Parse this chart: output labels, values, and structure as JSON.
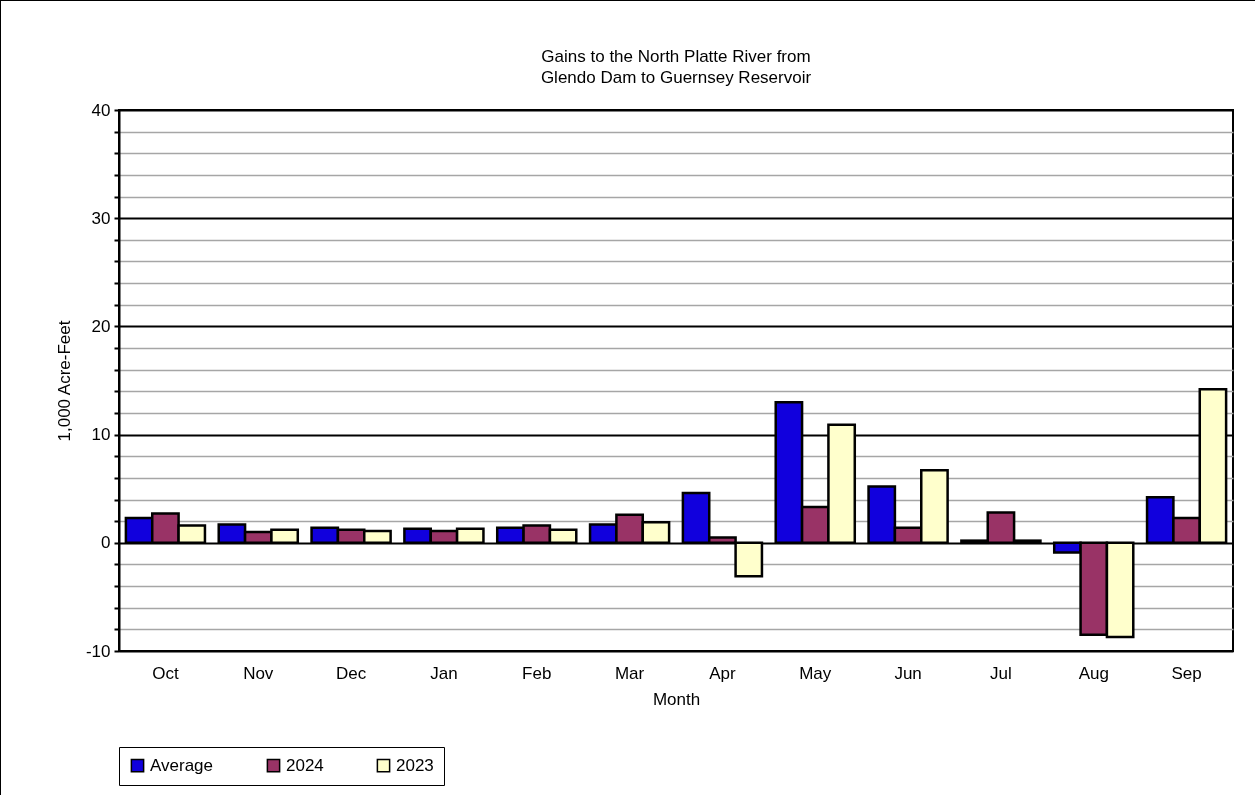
{
  "chart_data": {
    "type": "bar",
    "title": "Gains to the North Platte River from\nGlendo Dam to Guernsey Reservoir",
    "xlabel": "Month",
    "ylabel": "1,000 Acre-Feet",
    "categories": [
      "Oct",
      "Nov",
      "Dec",
      "Jan",
      "Feb",
      "Mar",
      "Apr",
      "May",
      "Jun",
      "Jul",
      "Aug",
      "Sep"
    ],
    "series": [
      {
        "name": "Average",
        "color": "#1100dd",
        "values": [
          2.3,
          1.7,
          1.4,
          1.3,
          1.4,
          1.7,
          4.6,
          13.0,
          5.2,
          0.2,
          -0.9,
          4.2
        ]
      },
      {
        "name": "2024",
        "color": "#993366",
        "values": [
          2.7,
          1.0,
          1.2,
          1.1,
          1.6,
          2.6,
          0.5,
          3.3,
          1.4,
          2.8,
          -8.5,
          2.3
        ]
      },
      {
        "name": "2023",
        "color": "#ffffcc",
        "values": [
          1.6,
          1.2,
          1.1,
          1.3,
          1.2,
          1.9,
          -3.1,
          10.9,
          6.7,
          0.2,
          -8.7,
          14.2
        ]
      }
    ],
    "ylim": [
      -10,
      40
    ],
    "yticks": [
      -10,
      {
        "value": -8,
        "label": null
      },
      {
        "value": -6,
        "label": null
      },
      {
        "value": -4,
        "label": null
      },
      {
        "value": -2,
        "label": null
      },
      0,
      {
        "value": 2,
        "label": null
      },
      {
        "value": 4,
        "label": null
      },
      {
        "value": 6,
        "label": null
      },
      {
        "value": 8,
        "label": null
      },
      10,
      {
        "value": 12,
        "label": null
      },
      {
        "value": 14,
        "label": null
      },
      {
        "value": 16,
        "label": null
      },
      {
        "value": 18,
        "label": null
      },
      20,
      {
        "value": 22,
        "label": null
      },
      {
        "value": 24,
        "label": null
      },
      {
        "value": 26,
        "label": null
      },
      {
        "value": 28,
        "label": null
      },
      30,
      {
        "value": 32,
        "label": null
      },
      {
        "value": 34,
        "label": null
      },
      {
        "value": 36,
        "label": null
      },
      {
        "value": 38,
        "label": null
      },
      40
    ],
    "grid": "y",
    "legend": "bottom"
  }
}
